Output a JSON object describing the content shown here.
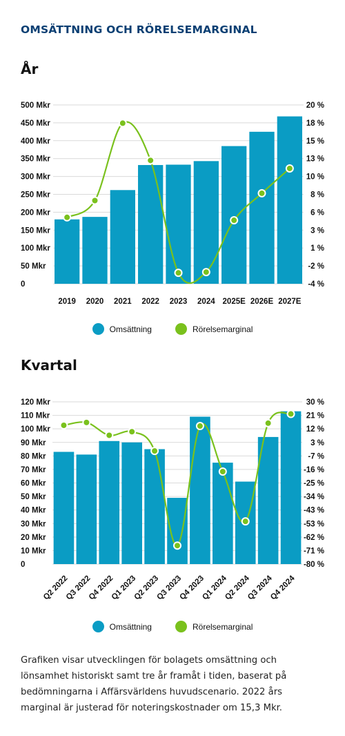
{
  "title": "OMSÄTTNING OCH RÖRELSEMARGINAL",
  "colors": {
    "bar": "#0a9cc4",
    "line": "#7ac11d",
    "title": "#0b3f73",
    "grid": "#d9d9d9"
  },
  "legend": {
    "bar_label": "Omsättning",
    "line_label": "Rörelsemarginal"
  },
  "chart_data": [
    {
      "type": "bar",
      "section_title": "År",
      "categories": [
        "2019",
        "2020",
        "2021",
        "2022",
        "2023",
        "2024",
        "2025E",
        "2026E",
        "2027E"
      ],
      "series": [
        {
          "name": "Omsättning",
          "type": "bar",
          "axis": "left",
          "values": [
            180,
            187,
            262,
            332,
            333,
            343,
            385,
            425,
            468
          ]
        },
        {
          "name": "Rörelsemarginal",
          "type": "line",
          "axis": "right",
          "values": [
            4.6,
            6.9,
            17.5,
            12.4,
            -3.0,
            -2.9,
            4.2,
            7.9,
            11.3
          ]
        }
      ],
      "y_left": {
        "min": 0,
        "max": 500,
        "ticks": [
          "0",
          "50 Mkr",
          "100 Mkr",
          "150 Mkr",
          "200 Mkr",
          "250 Mkr",
          "300 Mkr",
          "350 Mkr",
          "400 Mkr",
          "450 Mkr",
          "500 Mkr"
        ]
      },
      "y_right": {
        "min": -4.5,
        "max": 20,
        "ticks": [
          "-4 %",
          "-2 %",
          "1 %",
          "3 %",
          "6 %",
          "8 %",
          "10 %",
          "13 %",
          "15 %",
          "18 %",
          "20 %"
        ]
      },
      "grid": true,
      "legend_position": "bottom"
    },
    {
      "type": "bar",
      "section_title": "Kvartal",
      "categories": [
        "Q2 2022",
        "Q3 2022",
        "Q4 2022",
        "Q1 2023",
        "Q2 2023",
        "Q3 2023",
        "Q4 2023",
        "Q1 2024",
        "Q2 2024",
        "Q3 2024",
        "Q4 2024"
      ],
      "series": [
        {
          "name": "Omsättning",
          "type": "bar",
          "axis": "left",
          "values": [
            83,
            81,
            91,
            90,
            85,
            49,
            109,
            75,
            61,
            94,
            113
          ]
        },
        {
          "name": "Rörelsemarginal",
          "type": "line",
          "axis": "right",
          "values": [
            13.5,
            15.5,
            6.5,
            9.0,
            -4.5,
            -71,
            13,
            -19,
            -54,
            15,
            21.5
          ]
        }
      ],
      "y_left": {
        "min": 0,
        "max": 120,
        "ticks": [
          "0",
          "10 Mkr",
          "20 Mkr",
          "30 Mkr",
          "40 Mkr",
          "50 Mkr",
          "60 Mkr",
          "70 Mkr",
          "80 Mkr",
          "90 Mkr",
          "100 Mkr",
          "110 Mkr",
          "120 Mkr"
        ]
      },
      "y_right": {
        "min": -84,
        "max": 30,
        "ticks": [
          "-80 %",
          "-71 %",
          "-62 %",
          "-53 %",
          "-43 %",
          "-34 %",
          "-25 %",
          "-16 %",
          "-7 %",
          "3 %",
          "12 %",
          "21 %",
          "30 %"
        ]
      },
      "grid": true,
      "legend_position": "bottom"
    }
  ],
  "caption": "Grafiken visar utvecklingen för bolagets omsättning och lönsamhet historiskt samt tre år framåt i tiden, baserat på bedömningarna i Affärsvärldens huvudscenario. 2022 års marginal är justerad för noteringskostnader om 15,3 Mkr."
}
